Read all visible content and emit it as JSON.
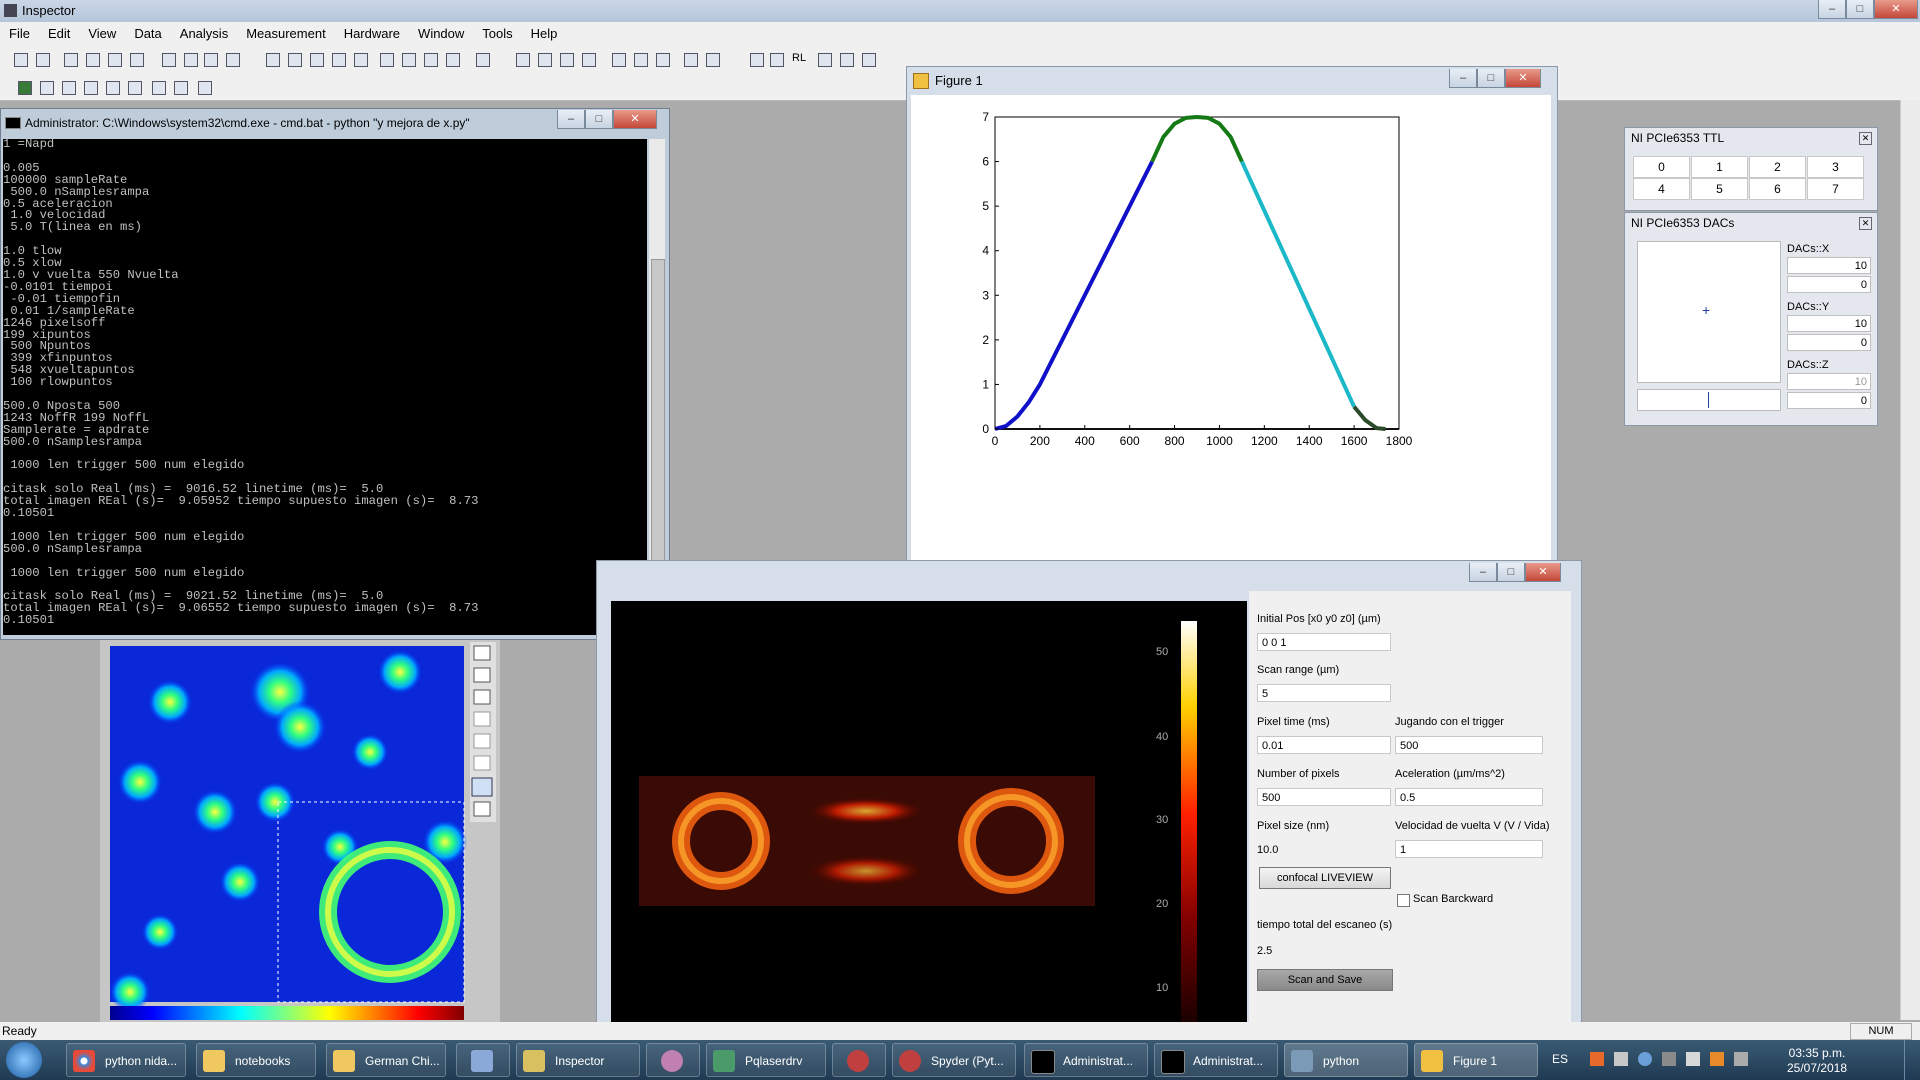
{
  "app": {
    "title": "Inspector"
  },
  "menu": [
    "File",
    "Edit",
    "View",
    "Data",
    "Analysis",
    "Measurement",
    "Hardware",
    "Window",
    "Tools",
    "Help"
  ],
  "toolbar": {
    "rl_label": "RL"
  },
  "cmd": {
    "title": "Administrator: C:\\Windows\\system32\\cmd.exe - cmd.bat  - python  \"y mejora de x.py\"",
    "lines": [
      "1 =Napd",
      "",
      "0.005",
      "100000 sampleRate",
      " 500.0 nSamplesrampa",
      "0.5 aceleracion",
      " 1.0 velocidad",
      " 5.0 T(linea en ms)",
      "",
      "1.0 tlow",
      "0.5 xlow",
      "1.0 v vuelta 550 Nvuelta",
      "-0.0101 tiempoi",
      " -0.01 tiempofin",
      " 0.01 1/sampleRate",
      "1246 pixelsoff",
      "199 xipuntos",
      " 500 Npuntos",
      " 399 xfinpuntos",
      " 548 xvueltapuntos",
      " 100 rlowpuntos",
      "",
      "500.0 Nposta 500",
      "1243 NoffR 199 NoffL",
      "Samplerate = apdrate",
      "500.0 nSamplesrampa",
      "",
      " 1000 len trigger 500 num elegido",
      "",
      "citask solo Real (ms) =  9016.52 linetime (ms)=  5.0",
      "total imagen REal (s)=  9.05952 tiempo supuesto imagen (s)=  8.73",
      "0.10501",
      "",
      " 1000 len trigger 500 num elegido",
      "500.0 nSamplesrampa",
      "",
      " 1000 len trigger 500 num elegido",
      "",
      "citask solo Real (ms) =  9021.52 linetime (ms)=  5.0",
      "total imagen REal (s)=  9.06552 tiempo supuesto imagen (s)=  8.73",
      "0.10501"
    ]
  },
  "figure1": {
    "title": "Figure 1",
    "chart_data": {
      "type": "line",
      "xlim": [
        0,
        1800
      ],
      "ylim": [
        0,
        7
      ],
      "xticks": [
        0,
        200,
        400,
        600,
        800,
        1000,
        1200,
        1400,
        1600,
        1800
      ],
      "yticks": [
        0,
        1,
        2,
        3,
        4,
        5,
        6,
        7
      ],
      "grid": false,
      "series": [
        {
          "color": "#111111",
          "points": [
            [
              0,
              0
            ],
            [
              1800,
              0
            ]
          ]
        },
        {
          "color": "#1010c8",
          "points": [
            [
              0,
              0
            ],
            [
              50,
              0.07
            ],
            [
              100,
              0.28
            ],
            [
              150,
              0.6
            ],
            [
              200,
              1.0
            ],
            [
              700,
              6.0
            ]
          ]
        },
        {
          "color": "#157a15",
          "points": [
            [
              700,
              6.0
            ],
            [
              750,
              6.55
            ],
            [
              800,
              6.85
            ],
            [
              850,
              6.98
            ],
            [
              900,
              7.0
            ],
            [
              950,
              6.98
            ],
            [
              1000,
              6.85
            ],
            [
              1050,
              6.55
            ],
            [
              1100,
              6.0
            ]
          ]
        },
        {
          "color": "#1bb8c8",
          "points": [
            [
              1100,
              6.0
            ],
            [
              1600,
              0.5
            ]
          ]
        },
        {
          "color": "#2a4a2a",
          "points": [
            [
              1600,
              0.5
            ],
            [
              1650,
              0.2
            ],
            [
              1700,
              0.02
            ],
            [
              1740,
              0
            ]
          ]
        }
      ]
    }
  },
  "ttl": {
    "title": "NI PCIe6353 TTL",
    "buttons": [
      "0",
      "1",
      "2",
      "3",
      "4",
      "5",
      "6",
      "7"
    ]
  },
  "dacs": {
    "title": "NI PCIe6353 DACs",
    "x_label": "DACs::X",
    "x_max": "10",
    "x_min": "0",
    "y_label": "DACs::Y",
    "y_max": "10",
    "y_min": "0",
    "z_label": "DACs::Z",
    "z_max": "10",
    "z_min": "0"
  },
  "scan": {
    "colorbar_ticks": [
      "50",
      "40",
      "30",
      "20",
      "10"
    ],
    "initial_pos_label": "Initial Pos [x0 y0 z0] (µm)",
    "initial_pos_value": "0 0 1",
    "scan_range_label": "Scan range (µm)",
    "scan_range_value": "5",
    "pixel_time_label": "Pixel time (ms)",
    "pixel_time_value": "0.01",
    "trigger_label": "Jugando con el trigger",
    "trigger_value": "500",
    "num_pixels_label": "Number of pixels",
    "num_pixels_value": "500",
    "accel_label": "Aceleration (µm/ms^2)",
    "accel_value": "0.5",
    "pixel_size_label": "Pixel size (nm)",
    "pixel_size_value": "10.0",
    "vel_label": "Velocidad de vuelta V (V / Vida)",
    "vel_value": "1",
    "liveview_btn": "confocal LIVEVIEW",
    "scan_backward_label": "Scan Barckward",
    "total_time_label": "tiempo total del escaneo (s)",
    "total_time_value": "2.5",
    "scan_save_btn": "Scan and Save"
  },
  "status": {
    "left": "Ready",
    "num": "NUM"
  },
  "taskbar": {
    "items": [
      "python nida...",
      "notebooks",
      "German Chi...",
      "",
      "Inspector",
      "",
      "Pqlaserdrv",
      "",
      "Spyder (Pyt...",
      "Administrat...",
      "Administrat...",
      "python",
      "Figure 1"
    ],
    "lang": "ES",
    "time": "03:35 p.m.",
    "date": "25/07/2018"
  }
}
